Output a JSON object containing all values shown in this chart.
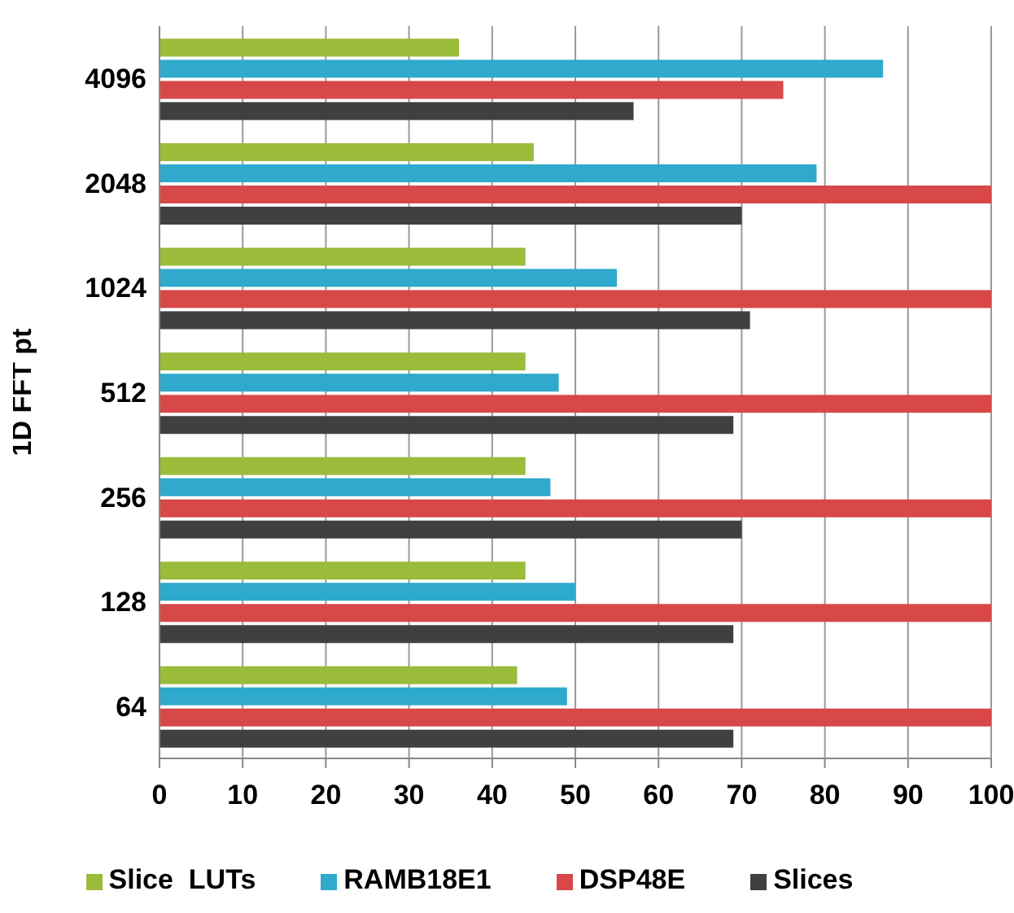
{
  "chart_data": {
    "type": "bar",
    "orientation": "horizontal",
    "ylabel": "1D FFT pt",
    "categories": [
      "4096",
      "2048",
      "1024",
      "512",
      "256",
      "128",
      "64"
    ],
    "series": [
      {
        "name": "Slice  LUTs",
        "color": "#9bbb3b",
        "values": [
          36,
          45,
          44,
          44,
          44,
          44,
          43
        ]
      },
      {
        "name": "RAMB18E1",
        "color": "#2fa9cc",
        "values": [
          87,
          79,
          55,
          48,
          47,
          50,
          49
        ]
      },
      {
        "name": "DSP48E",
        "color": "#d84848",
        "values": [
          75,
          100,
          100,
          100,
          100,
          100,
          100
        ]
      },
      {
        "name": "Slices",
        "color": "#404040",
        "values": [
          57,
          70,
          71,
          69,
          70,
          69,
          69
        ]
      }
    ],
    "xlim": [
      0,
      100
    ],
    "xticks": [
      0,
      10,
      20,
      30,
      40,
      50,
      60,
      70,
      80,
      90,
      100
    ],
    "grid": "x",
    "legend": "bottom"
  }
}
